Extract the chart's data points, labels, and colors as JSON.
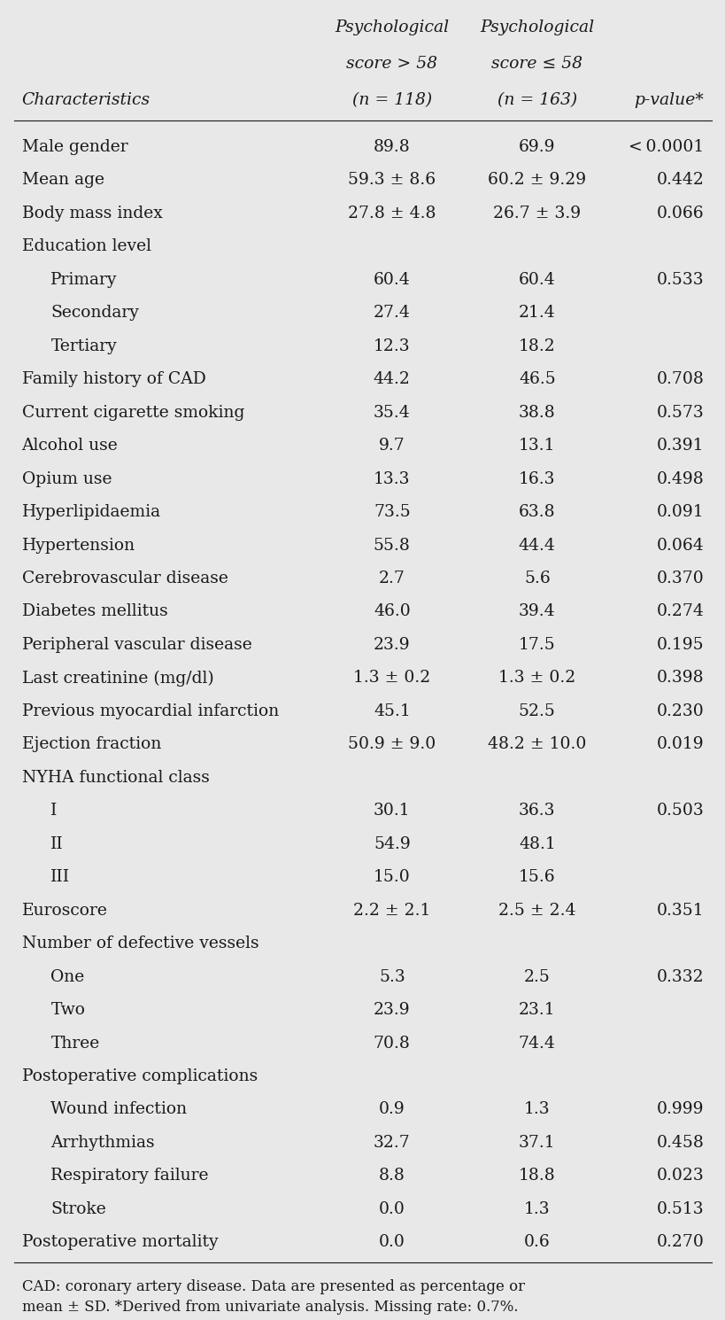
{
  "header_lines": [
    [
      "",
      "Psychological",
      "Psychological",
      ""
    ],
    [
      "",
      "score > 58",
      "score ≤ 58",
      ""
    ],
    [
      "Characteristics",
      "(n = 118)",
      "(n = 163)",
      "p-value*"
    ]
  ],
  "rows": [
    {
      "label": "Male gender",
      "col1": "89.8",
      "col2": "69.9",
      "col3": "< 0.0001",
      "indent": 0
    },
    {
      "label": "Mean age",
      "col1": "59.3 ± 8.6",
      "col2": "60.2 ± 9.29",
      "col3": "0.442",
      "indent": 0
    },
    {
      "label": "Body mass index",
      "col1": "27.8 ± 4.8",
      "col2": "26.7 ± 3.9",
      "col3": "0.066",
      "indent": 0
    },
    {
      "label": "Education level",
      "col1": "",
      "col2": "",
      "col3": "",
      "indent": 0
    },
    {
      "label": "Primary",
      "col1": "60.4",
      "col2": "60.4",
      "col3": "0.533",
      "indent": 1
    },
    {
      "label": "Secondary",
      "col1": "27.4",
      "col2": "21.4",
      "col3": "",
      "indent": 1
    },
    {
      "label": "Tertiary",
      "col1": "12.3",
      "col2": "18.2",
      "col3": "",
      "indent": 1
    },
    {
      "label": "Family history of CAD",
      "col1": "44.2",
      "col2": "46.5",
      "col3": "0.708",
      "indent": 0
    },
    {
      "label": "Current cigarette smoking",
      "col1": "35.4",
      "col2": "38.8",
      "col3": "0.573",
      "indent": 0
    },
    {
      "label": "Alcohol use",
      "col1": "9.7",
      "col2": "13.1",
      "col3": "0.391",
      "indent": 0
    },
    {
      "label": "Opium use",
      "col1": "13.3",
      "col2": "16.3",
      "col3": "0.498",
      "indent": 0
    },
    {
      "label": "Hyperlipidaemia",
      "col1": "73.5",
      "col2": "63.8",
      "col3": "0.091",
      "indent": 0
    },
    {
      "label": "Hypertension",
      "col1": "55.8",
      "col2": "44.4",
      "col3": "0.064",
      "indent": 0
    },
    {
      "label": "Cerebrovascular disease",
      "col1": "2.7",
      "col2": "5.6",
      "col3": "0.370",
      "indent": 0
    },
    {
      "label": "Diabetes mellitus",
      "col1": "46.0",
      "col2": "39.4",
      "col3": "0.274",
      "indent": 0
    },
    {
      "label": "Peripheral vascular disease",
      "col1": "23.9",
      "col2": "17.5",
      "col3": "0.195",
      "indent": 0
    },
    {
      "label": "Last creatinine (mg/dl)",
      "col1": "1.3 ± 0.2",
      "col2": "1.3 ± 0.2",
      "col3": "0.398",
      "indent": 0
    },
    {
      "label": "Previous myocardial infarction",
      "col1": "45.1",
      "col2": "52.5",
      "col3": "0.230",
      "indent": 0
    },
    {
      "label": "Ejection fraction",
      "col1": "50.9 ± 9.0",
      "col2": "48.2 ± 10.0",
      "col3": "0.019",
      "indent": 0
    },
    {
      "label": "NYHA functional class",
      "col1": "",
      "col2": "",
      "col3": "",
      "indent": 0
    },
    {
      "label": "I",
      "col1": "30.1",
      "col2": "36.3",
      "col3": "0.503",
      "indent": 1
    },
    {
      "label": "II",
      "col1": "54.9",
      "col2": "48.1",
      "col3": "",
      "indent": 1
    },
    {
      "label": "III",
      "col1": "15.0",
      "col2": "15.6",
      "col3": "",
      "indent": 1
    },
    {
      "label": "Euroscore",
      "col1": "2.2 ± 2.1",
      "col2": "2.5 ± 2.4",
      "col3": "0.351",
      "indent": 0
    },
    {
      "label": "Number of defective vessels",
      "col1": "",
      "col2": "",
      "col3": "",
      "indent": 0
    },
    {
      "label": "One",
      "col1": "5.3",
      "col2": "2.5",
      "col3": "0.332",
      "indent": 1
    },
    {
      "label": "Two",
      "col1": "23.9",
      "col2": "23.1",
      "col3": "",
      "indent": 1
    },
    {
      "label": "Three",
      "col1": "70.8",
      "col2": "74.4",
      "col3": "",
      "indent": 1
    },
    {
      "label": "Postoperative complications",
      "col1": "",
      "col2": "",
      "col3": "",
      "indent": 0
    },
    {
      "label": "Wound infection",
      "col1": "0.9",
      "col2": "1.3",
      "col3": "0.999",
      "indent": 1
    },
    {
      "label": "Arrhythmias",
      "col1": "32.7",
      "col2": "37.1",
      "col3": "0.458",
      "indent": 1
    },
    {
      "label": "Respiratory failure",
      "col1": "8.8",
      "col2": "18.8",
      "col3": "0.023",
      "indent": 1
    },
    {
      "label": "Stroke",
      "col1": "0.0",
      "col2": "1.3",
      "col3": "0.513",
      "indent": 1
    },
    {
      "label": "Postoperative mortality",
      "col1": "0.0",
      "col2": "0.6",
      "col3": "0.270",
      "indent": 0
    }
  ],
  "footnote": "CAD: coronary artery disease. Data are presented as percentage or\nmean ± SD. *Derived from univariate analysis. Missing rate: 0.7%.",
  "background_color": "#e8e8e8",
  "text_color": "#1a1a1a",
  "font_size": 13.5,
  "header_font_size": 13.5
}
